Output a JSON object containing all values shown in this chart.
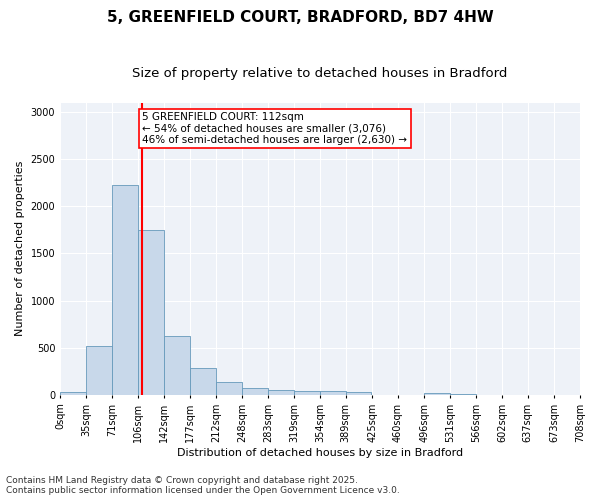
{
  "title_line1": "5, GREENFIELD COURT, BRADFORD, BD7 4HW",
  "title_line2": "Size of property relative to detached houses in Bradford",
  "xlabel": "Distribution of detached houses by size in Bradford",
  "ylabel": "Number of detached properties",
  "bar_color": "#c8d8ea",
  "bar_edge_color": "#6699bb",
  "background_color": "#eef2f8",
  "grid_color": "white",
  "vline_x": 112,
  "vline_color": "red",
  "bin_edges": [
    0,
    35,
    71,
    106,
    142,
    177,
    212,
    248,
    283,
    319,
    354,
    389,
    425,
    460,
    496,
    531,
    566,
    602,
    637,
    673,
    708
  ],
  "bin_labels": [
    "0sqm",
    "35sqm",
    "71sqm",
    "106sqm",
    "142sqm",
    "177sqm",
    "212sqm",
    "248sqm",
    "283sqm",
    "319sqm",
    "354sqm",
    "389sqm",
    "425sqm",
    "460sqm",
    "496sqm",
    "531sqm",
    "566sqm",
    "602sqm",
    "637sqm",
    "673sqm",
    "708sqm"
  ],
  "bar_heights": [
    30,
    520,
    2230,
    1750,
    630,
    290,
    140,
    75,
    50,
    45,
    40,
    30,
    0,
    0,
    20,
    10,
    0,
    0,
    0,
    0
  ],
  "ylim": [
    0,
    3100
  ],
  "yticks": [
    0,
    500,
    1000,
    1500,
    2000,
    2500,
    3000
  ],
  "annotation_text": "5 GREENFIELD COURT: 112sqm\n← 54% of detached houses are smaller (3,076)\n46% of semi-detached houses are larger (2,630) →",
  "annotation_box_color": "white",
  "annotation_box_edge": "red",
  "footer_line1": "Contains HM Land Registry data © Crown copyright and database right 2025.",
  "footer_line2": "Contains public sector information licensed under the Open Government Licence v3.0.",
  "title_fontsize": 11,
  "subtitle_fontsize": 9.5,
  "axis_label_fontsize": 8,
  "tick_fontsize": 7,
  "annotation_fontsize": 7.5,
  "footer_fontsize": 6.5
}
